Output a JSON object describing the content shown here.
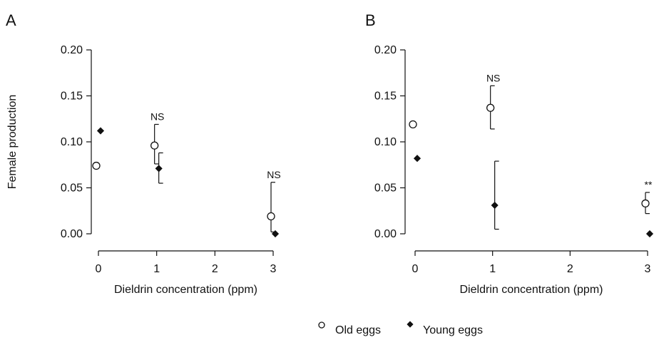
{
  "legend": [
    {
      "label": "Old eggs",
      "marker": "open-circle"
    },
    {
      "label": "Young eggs",
      "marker": "filled-diamond"
    }
  ],
  "chart_data": [
    {
      "type": "scatter",
      "panel_label": "A",
      "xlabel": "Dieldrin concentration (ppm)",
      "ylabel": "Female production",
      "xlim": [
        0,
        3
      ],
      "ylim": [
        0,
        0.2
      ],
      "x_ticks": [
        "0",
        "1",
        "2",
        "3"
      ],
      "y_ticks": [
        "0.00",
        "0.05",
        "0.10",
        "0.15",
        "0.20"
      ],
      "series": [
        {
          "name": "Old eggs",
          "marker": "open-circle",
          "points": [
            {
              "x": 0,
              "y": 0.074,
              "err_low": null,
              "err_high": null
            },
            {
              "x": 1,
              "y": 0.096,
              "err_low": 0.076,
              "err_high": 0.119
            },
            {
              "x": 3,
              "y": 0.019,
              "err_low": 0.002,
              "err_high": 0.056
            }
          ]
        },
        {
          "name": "Young eggs",
          "marker": "filled-diamond",
          "points": [
            {
              "x": 0,
              "y": 0.112,
              "err_low": null,
              "err_high": null
            },
            {
              "x": 1,
              "y": 0.071,
              "err_low": 0.055,
              "err_high": 0.088
            },
            {
              "x": 3,
              "y": 0.0,
              "err_low": null,
              "err_high": null
            }
          ]
        }
      ],
      "annotations": [
        {
          "text": "NS",
          "x": 1,
          "y": 0.119
        },
        {
          "text": "NS",
          "x": 3,
          "y": 0.056
        }
      ]
    },
    {
      "type": "scatter",
      "panel_label": "B",
      "xlabel": "Dieldrin concentration (ppm)",
      "ylabel": "",
      "xlim": [
        0,
        3
      ],
      "ylim": [
        0,
        0.2
      ],
      "x_ticks": [
        "0",
        "1",
        "2",
        "3"
      ],
      "y_ticks": [
        "0.00",
        "0.05",
        "0.10",
        "0.15",
        "0.20"
      ],
      "series": [
        {
          "name": "Old eggs",
          "marker": "open-circle",
          "points": [
            {
              "x": 0,
              "y": 0.119,
              "err_low": null,
              "err_high": null
            },
            {
              "x": 1,
              "y": 0.137,
              "err_low": 0.114,
              "err_high": 0.161
            },
            {
              "x": 3,
              "y": 0.033,
              "err_low": 0.022,
              "err_high": 0.045
            }
          ]
        },
        {
          "name": "Young eggs",
          "marker": "filled-diamond",
          "points": [
            {
              "x": 0,
              "y": 0.082,
              "err_low": null,
              "err_high": null
            },
            {
              "x": 1,
              "y": 0.031,
              "err_low": 0.005,
              "err_high": 0.079
            },
            {
              "x": 3,
              "y": 0.0,
              "err_low": null,
              "err_high": null
            }
          ]
        }
      ],
      "annotations": [
        {
          "text": "NS",
          "x": 1,
          "y": 0.161
        },
        {
          "text": "**",
          "x": 3,
          "y": 0.045
        }
      ]
    }
  ]
}
